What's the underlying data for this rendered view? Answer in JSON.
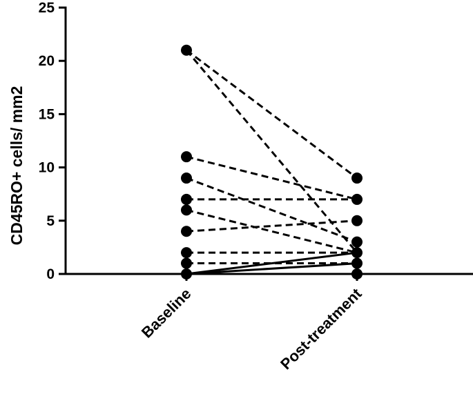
{
  "chart_data": {
    "type": "scatter",
    "subtype": "paired before-after plot",
    "title": "",
    "xlabel": "",
    "ylabel": "CD45RO+ cells/ mm2",
    "categories": [
      "Baseline",
      "Post-treatment"
    ],
    "ylim": [
      0,
      25
    ],
    "yticks": [
      0,
      5,
      10,
      15,
      20,
      25
    ],
    "grid": false,
    "legend": "none",
    "marker_color": "#000000",
    "pairs": [
      {
        "baseline": 21,
        "post": 9,
        "line_style": "dashed"
      },
      {
        "baseline": 21,
        "post": 2,
        "line_style": "dashed"
      },
      {
        "baseline": 11,
        "post": 7,
        "line_style": "dashed"
      },
      {
        "baseline": 9,
        "post": 3,
        "line_style": "dashed"
      },
      {
        "baseline": 7,
        "post": 7,
        "line_style": "dashed"
      },
      {
        "baseline": 6,
        "post": 2,
        "line_style": "dashed"
      },
      {
        "baseline": 4,
        "post": 5,
        "line_style": "dashed"
      },
      {
        "baseline": 2,
        "post": 2,
        "line_style": "dashed"
      },
      {
        "baseline": 1,
        "post": 1,
        "line_style": "dashed"
      },
      {
        "baseline": 0,
        "post": 2,
        "line_style": "solid"
      },
      {
        "baseline": 0,
        "post": 1,
        "line_style": "solid"
      },
      {
        "baseline": 0,
        "post": 0,
        "line_style": "solid"
      }
    ]
  }
}
